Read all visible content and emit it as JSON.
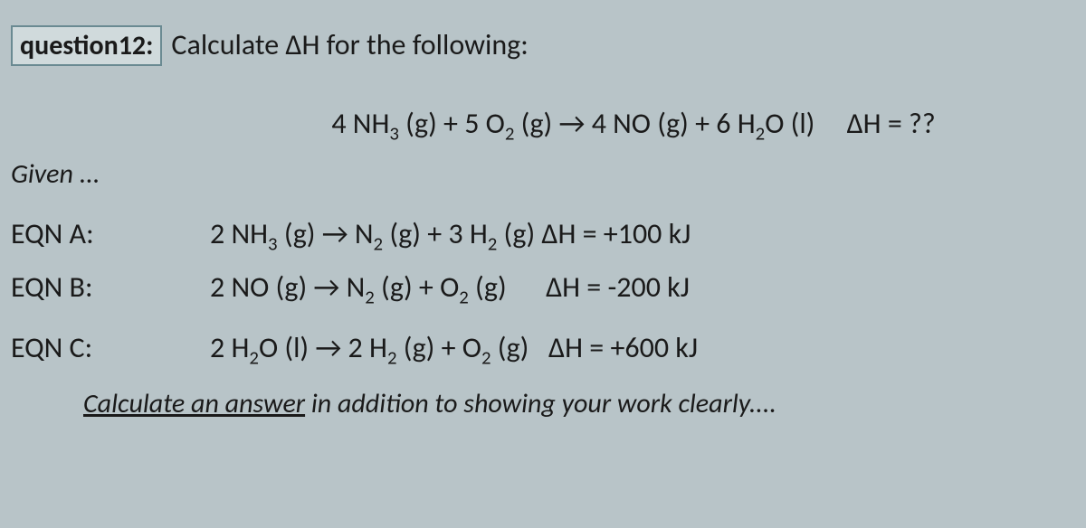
{
  "header": {
    "label": "question12:",
    "prompt": "Calculate ΔH for the following:"
  },
  "target": {
    "eqn_html": "4 NH<sub>3</sub> (g) + 5 O<sub>2</sub> (g) → 4 NO (g) + 6 H<sub>2</sub>O (l)",
    "dh": "ΔH = ??"
  },
  "given_label": "Given ...",
  "equations": [
    {
      "label": "EQN A:",
      "body_html": "2 NH<sub>3</sub> (g) →  N<sub>2</sub> (g) + 3 H<sub>2</sub> (g)  ΔH = +100 kJ"
    },
    {
      "label": "EQN B:",
      "body_html": "2 NO (g) → N<sub>2</sub> (g) + O<sub>2</sub> (g) &nbsp;&nbsp;&nbsp;&nbsp; ΔH = -200 kJ"
    },
    {
      "label": "EQN C:",
      "body_html": "2 H<sub>2</sub>O (l) → 2 H<sub>2</sub> (g) + O<sub>2</sub> (g) &nbsp; ΔH = +600 kJ"
    }
  ],
  "instruction": {
    "underlined": "Calculate an answer",
    "rest": " in addition to showing your work clearly...."
  }
}
